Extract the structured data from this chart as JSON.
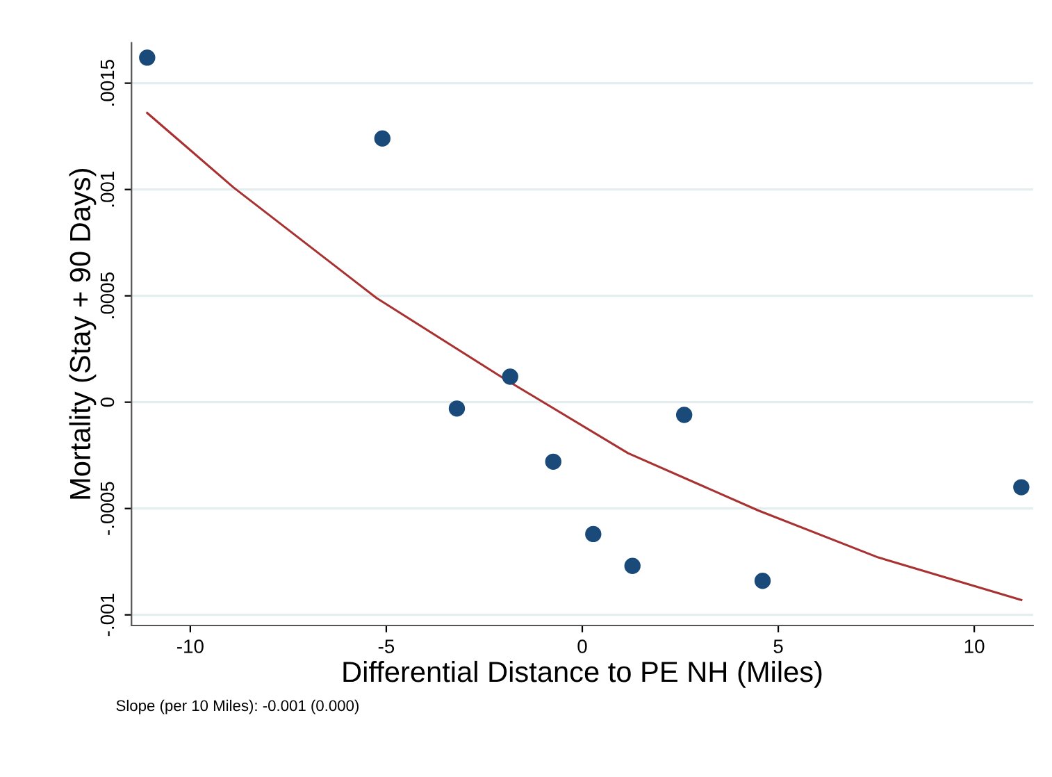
{
  "chart_data": {
    "type": "scatter",
    "xlabel": "Differential Distance to PE NH (Miles)",
    "ylabel": "Mortality (Stay + 90 Days)",
    "annotations": [
      "Slope (per 10 Miles): -0.001 (0.000)"
    ],
    "series": [
      {
        "color": "#1a4a7a",
        "marker": "circle",
        "x": [
          -11.1,
          -5.1,
          -3.2,
          -1.84,
          -0.74,
          0.28,
          1.28,
          2.6,
          4.6,
          11.2
        ],
        "values": [
          0.00162,
          0.00124,
          -3e-05,
          0.00012,
          -0.00028,
          -0.00062,
          -0.00077,
          -6e-05,
          -0.00084,
          -0.0004
        ]
      },
      {
        "type": "line",
        "color": "#a83232",
        "marker": "none",
        "line_style": "solid",
        "x": [
          -11.1,
          -8.9,
          -5.25,
          -1.99,
          1.17,
          4.5,
          7.55,
          11.2
        ],
        "values": [
          0.00136,
          0.00101,
          0.00049,
          0.00011,
          -0.00024,
          -0.00051,
          -0.00073,
          -0.00093
        ]
      }
    ],
    "xlim": [
      -11.5,
      11.5
    ],
    "xticks": [
      -10,
      -5,
      0,
      5,
      10
    ],
    "ylim": [
      -0.00105,
      0.00169
    ],
    "yticks": [
      {
        "value": -0.001,
        "label": "-.001"
      },
      {
        "value": -0.0005,
        "label": "-.0005"
      },
      {
        "value": 0,
        "label": "0"
      },
      {
        "value": 0.0005,
        "label": ".0005"
      },
      {
        "value": 0.001,
        "label": ".001"
      },
      {
        "value": 0.0015,
        "label": ".0015"
      }
    ],
    "grid": "y",
    "legend": false
  }
}
